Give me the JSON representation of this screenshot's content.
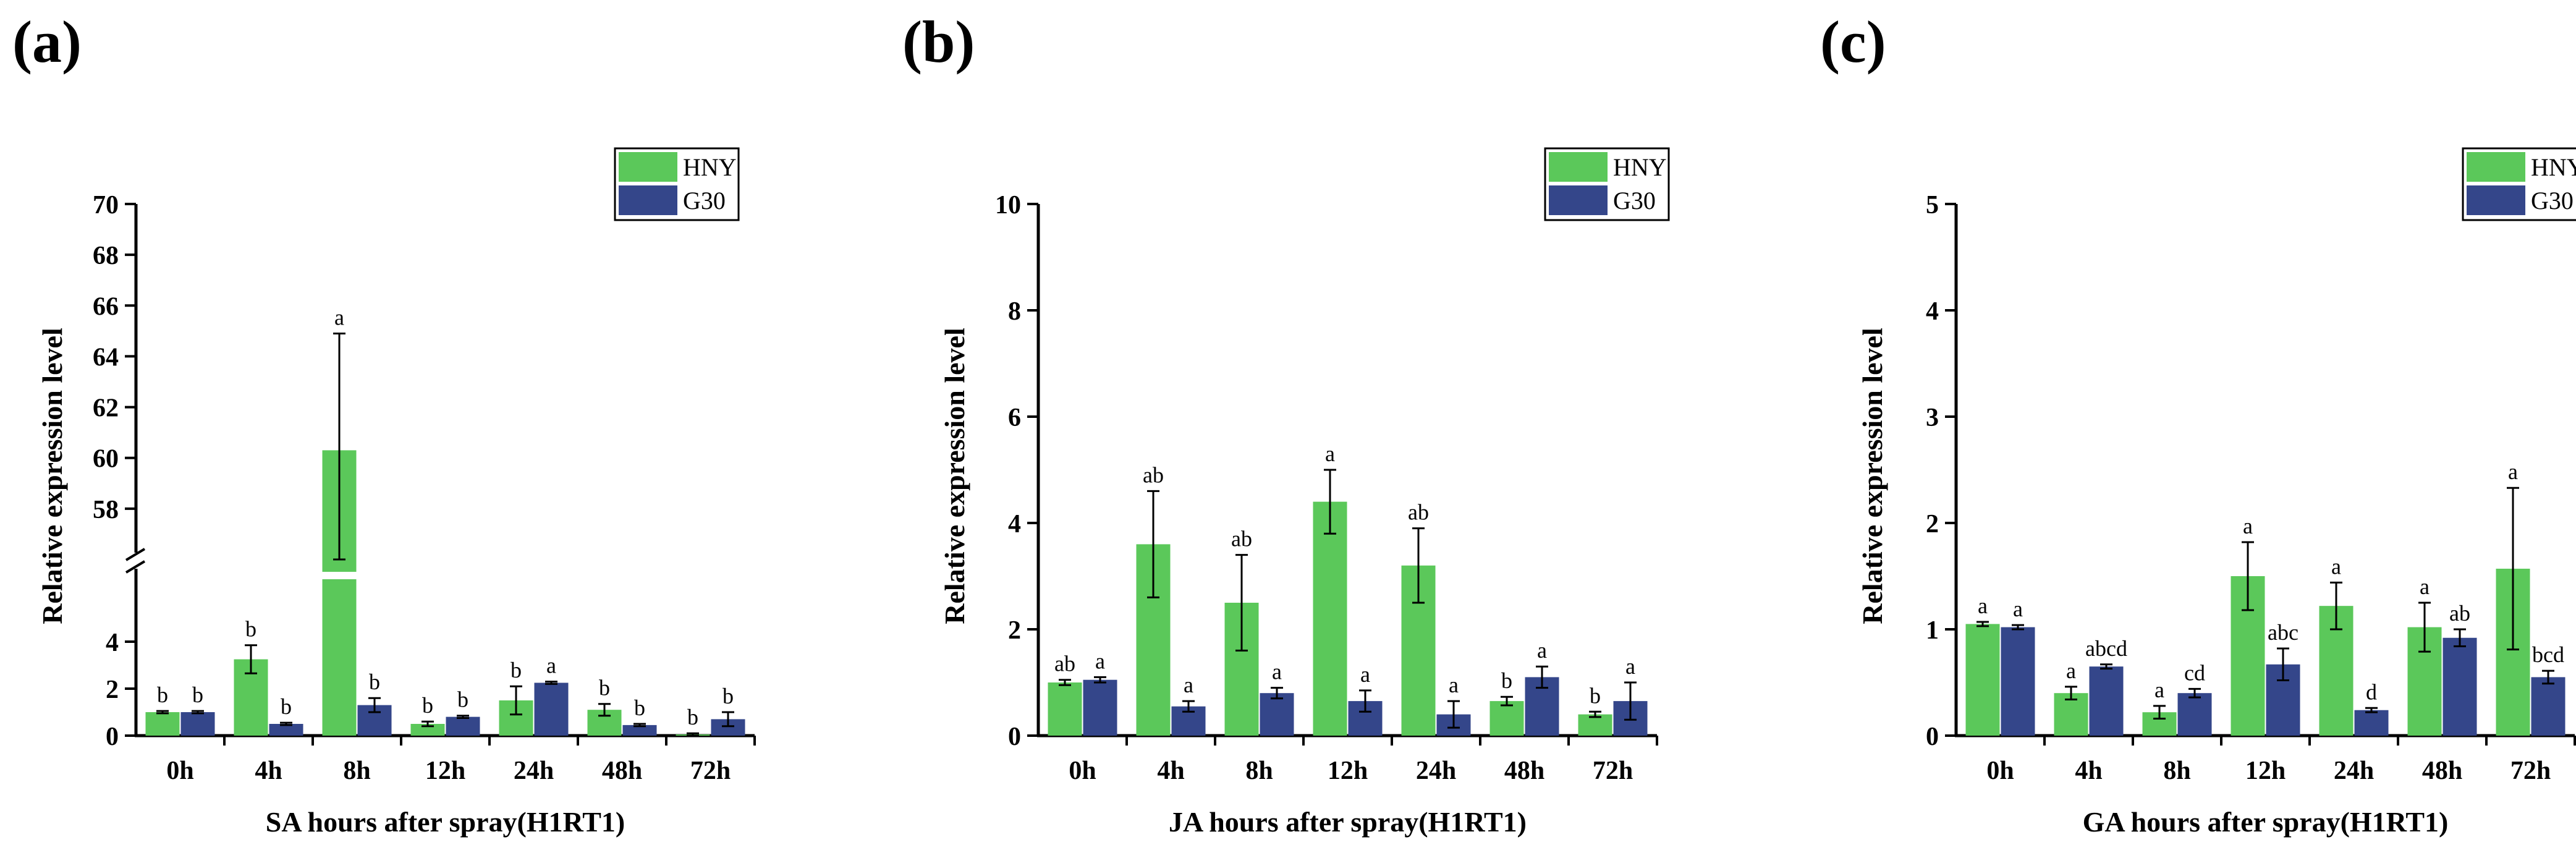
{
  "colors": {
    "HNY": "#5bc85a",
    "G30": "#34468a"
  },
  "chart_data": [
    {
      "type": "bar",
      "panel_label": "(a)",
      "title": "",
      "xlabel": "SA hours after spray(H1RT1)",
      "ylabel": "Relative expression level",
      "categories": [
        "0h",
        "4h",
        "8h",
        "12h",
        "24h",
        "48h",
        "72h"
      ],
      "legend": [
        "HNY",
        "G30"
      ],
      "legend_position": "top-right",
      "axis_break": {
        "lower_range": [
          0,
          5
        ],
        "upper_range": [
          56,
          70
        ]
      },
      "ylim": [
        0,
        70
      ],
      "yticks_lower": [
        "0",
        "2",
        "4"
      ],
      "yticks_upper": [
        "58",
        "60",
        "62",
        "64",
        "66",
        "68",
        "70"
      ],
      "series": [
        {
          "name": "HNY",
          "values": [
            1.0,
            3.25,
            60.3,
            0.5,
            1.5,
            1.1,
            0.05
          ],
          "errors": [
            0.05,
            0.6,
            4.6,
            0.1,
            0.6,
            0.25,
            0.05
          ],
          "letters": [
            "b",
            "b",
            "a",
            "b",
            "b",
            "b",
            "b"
          ]
        },
        {
          "name": "G30",
          "values": [
            1.0,
            0.5,
            1.3,
            0.8,
            2.25,
            0.45,
            0.7
          ],
          "errors": [
            0.05,
            0.05,
            0.3,
            0.05,
            0.05,
            0.05,
            0.3
          ],
          "letters": [
            "b",
            "b",
            "b",
            "b",
            "a",
            "b",
            "b"
          ]
        }
      ]
    },
    {
      "type": "bar",
      "panel_label": "(b)",
      "title": "",
      "xlabel": "JA hours after spray(H1RT1)",
      "ylabel": "Relative expression level",
      "categories": [
        "0h",
        "4h",
        "8h",
        "12h",
        "24h",
        "48h",
        "72h"
      ],
      "legend": [
        "HNY",
        "G30"
      ],
      "legend_position": "top-right",
      "ylim": [
        0,
        10
      ],
      "yticks": [
        "0",
        "2",
        "4",
        "6",
        "8",
        "10"
      ],
      "series": [
        {
          "name": "HNY",
          "values": [
            1.0,
            3.6,
            2.5,
            4.4,
            3.2,
            0.65,
            0.4
          ],
          "errors": [
            0.05,
            1.0,
            0.9,
            0.6,
            0.7,
            0.08,
            0.05
          ],
          "letters": [
            "ab",
            "ab",
            "ab",
            "a",
            "ab",
            "b",
            "b"
          ]
        },
        {
          "name": "G30",
          "values": [
            1.05,
            0.55,
            0.8,
            0.65,
            0.4,
            1.1,
            0.65
          ],
          "errors": [
            0.05,
            0.1,
            0.1,
            0.2,
            0.25,
            0.2,
            0.35
          ],
          "letters": [
            "a",
            "a",
            "a",
            "a",
            "a",
            "a",
            "a"
          ]
        }
      ]
    },
    {
      "type": "bar",
      "panel_label": "(c)",
      "title": "",
      "xlabel": "GA hours after spray(H1RT1)",
      "ylabel": "Relative expression level",
      "categories": [
        "0h",
        "4h",
        "8h",
        "12h",
        "24h",
        "48h",
        "72h"
      ],
      "legend": [
        "HNY",
        "G30"
      ],
      "legend_position": "top-right",
      "ylim": [
        0,
        5
      ],
      "yticks": [
        "0",
        "1",
        "2",
        "3",
        "4",
        "5"
      ],
      "series": [
        {
          "name": "HNY",
          "values": [
            1.05,
            0.4,
            0.22,
            1.5,
            1.22,
            1.02,
            1.57
          ],
          "errors": [
            0.02,
            0.06,
            0.06,
            0.32,
            0.22,
            0.23,
            0.76
          ],
          "letters": [
            "a",
            "a",
            "a",
            "a",
            "a",
            "a",
            "a"
          ]
        },
        {
          "name": "G30",
          "values": [
            1.02,
            0.65,
            0.4,
            0.67,
            0.24,
            0.92,
            0.55
          ],
          "errors": [
            0.02,
            0.02,
            0.04,
            0.15,
            0.02,
            0.08,
            0.06
          ],
          "letters": [
            "a",
            "abcd",
            "cd",
            "abc",
            "d",
            "ab",
            "bcd"
          ]
        }
      ]
    }
  ]
}
